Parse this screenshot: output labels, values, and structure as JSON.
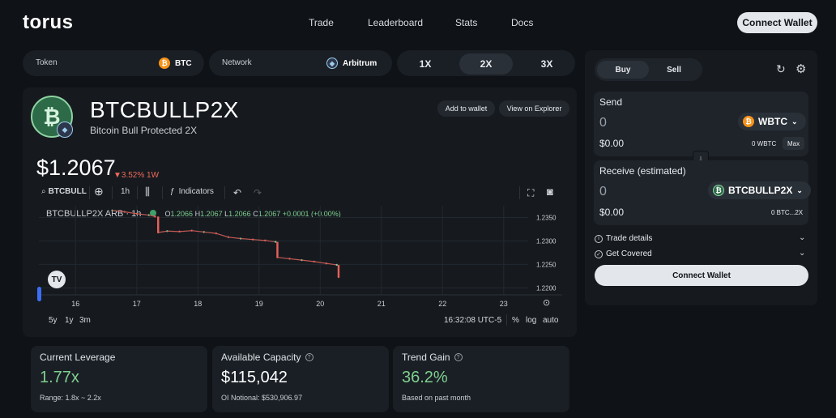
{
  "header": {
    "logo": "torus",
    "nav": [
      "Trade",
      "Leaderboard",
      "Stats",
      "Docs"
    ],
    "connect_wallet": "Connect Wallet"
  },
  "selector": {
    "token_label": "Token",
    "token_value": "BTC",
    "network_label": "Network",
    "network_value": "Arbitrum",
    "leverage_options": [
      "1X",
      "2X",
      "3X"
    ],
    "leverage_selected": "2X"
  },
  "token": {
    "name": "BTCBULLP2X",
    "subtitle": "Bitcoin Bull Protected 2X",
    "add_to_wallet": "Add to wallet",
    "view_on_explorer": "View on Explorer",
    "price": "$1.2067",
    "change": "▼3.52% 1W"
  },
  "chart_toolbar": {
    "symbol": "BTCBULL",
    "interval": "1h",
    "indicators": "Indicators"
  },
  "chart_legend": {
    "title": "BTCBULLP2X ARB · 1h",
    "o_label": "O",
    "o": "1.2066",
    "h_label": "H",
    "h": "1.2067",
    "l_label": "L",
    "l": "1.2066",
    "c_label": "C",
    "c": "1.2067",
    "delta": "+0.0001 (+0.00%)"
  },
  "chart_data": {
    "type": "line",
    "x_ticks": [
      "16",
      "17",
      "18",
      "19",
      "20",
      "21",
      "22",
      "23"
    ],
    "y_ticks": [
      "1.2350",
      "1.2300",
      "1.2250",
      "1.2200"
    ],
    "ylim": [
      1.2185,
      1.2375
    ],
    "series": [
      {
        "x": [
          16.6,
          16.8,
          17.0,
          17.2,
          17.3,
          17.35,
          17.5,
          17.7,
          17.9,
          18.1,
          18.3,
          18.5,
          18.7,
          18.9,
          19.1,
          19.27,
          19.3,
          19.5,
          19.7,
          19.9,
          20.1,
          20.27,
          20.3
        ],
        "values": [
          1.2365,
          1.2362,
          1.2358,
          1.2355,
          1.2352,
          1.2318,
          1.2321,
          1.232,
          1.2322,
          1.2319,
          1.2316,
          1.2308,
          1.2305,
          1.2303,
          1.2301,
          1.2298,
          1.2265,
          1.2262,
          1.2259,
          1.2256,
          1.2252,
          1.2249,
          1.2223
        ]
      }
    ]
  },
  "chart_bottom": {
    "ranges": [
      "5y",
      "1y",
      "3m"
    ],
    "time": "16:32:08 UTC-5",
    "percent": "%",
    "log": "log",
    "auto": "auto"
  },
  "stats": [
    {
      "title": "Current Leverage",
      "value": "1.77x",
      "sub": "Range: 1.8x ~ 2.2x",
      "color": "#7fd08f"
    },
    {
      "title": "Available Capacity",
      "value": "$115,042",
      "sub": "OI Notional: $530,906.97",
      "color": "#ffffff"
    },
    {
      "title": "Trend Gain",
      "value": "36.2%",
      "sub": "Based on past month",
      "color": "#7fd08f"
    }
  ],
  "trade": {
    "buy": "Buy",
    "sell": "Sell",
    "send_label": "Send",
    "send_amount": "0",
    "send_usd": "$0.00",
    "send_token": "WBTC",
    "send_balance": "0 WBTC",
    "max": "Max",
    "receive_label": "Receive (estimated)",
    "receive_amount": "0",
    "receive_usd": "$0.00",
    "receive_token": "BTCBULLP2X",
    "receive_balance": "0 BTC...2X",
    "trade_details": "Trade details",
    "get_covered": "Get Covered",
    "connect_wallet": "Connect Wallet"
  }
}
